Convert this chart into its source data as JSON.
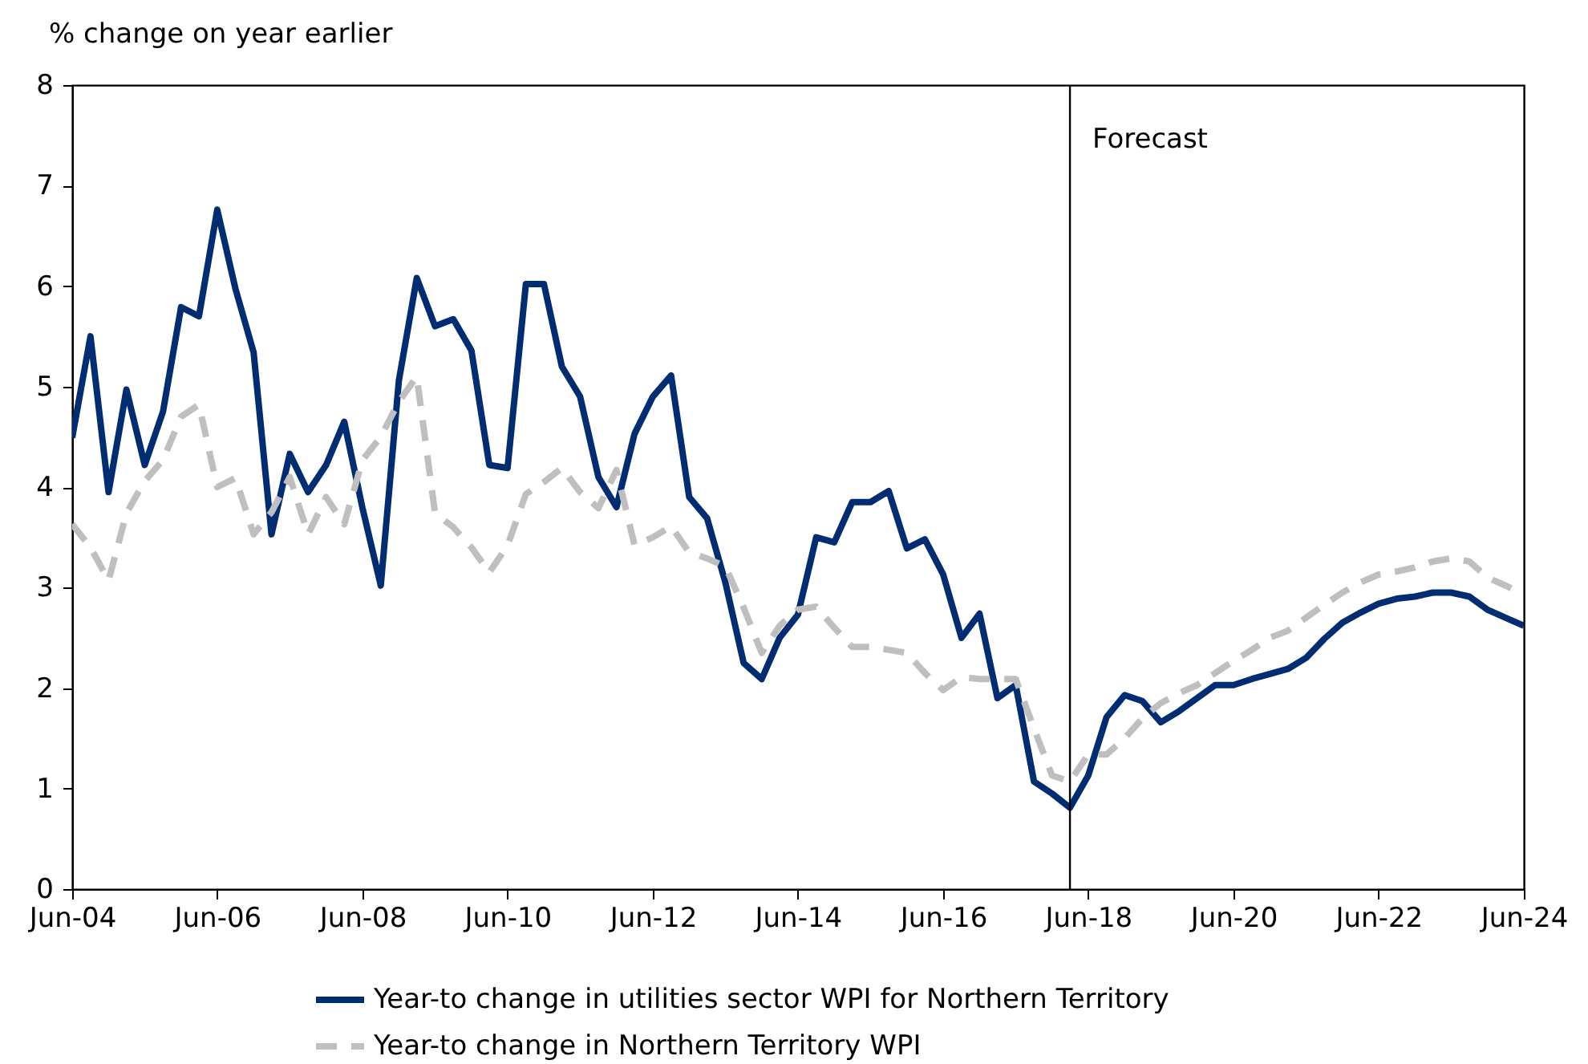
{
  "chart_data": {
    "type": "line",
    "ylabel": "% change on year earlier",
    "legend": "bottom",
    "grid": false,
    "x": [
      "2004-06",
      "2004-09",
      "2004-12",
      "2005-03",
      "2005-06",
      "2005-09",
      "2005-12",
      "2006-03",
      "2006-06",
      "2006-09",
      "2006-12",
      "2007-03",
      "2007-06",
      "2007-09",
      "2007-12",
      "2008-03",
      "2008-06",
      "2008-09",
      "2008-12",
      "2009-03",
      "2009-06",
      "2009-09",
      "2009-12",
      "2010-03",
      "2010-06",
      "2010-09",
      "2010-12",
      "2011-03",
      "2011-06",
      "2011-09",
      "2011-12",
      "2012-03",
      "2012-06",
      "2012-09",
      "2012-12",
      "2013-03",
      "2013-06",
      "2013-09",
      "2013-12",
      "2014-03",
      "2014-06",
      "2014-09",
      "2014-12",
      "2015-03",
      "2015-06",
      "2015-09",
      "2015-12",
      "2016-03",
      "2016-06",
      "2016-09",
      "2016-12",
      "2017-03",
      "2017-06",
      "2017-09",
      "2017-12",
      "2018-03",
      "2018-06",
      "2018-09",
      "2018-12",
      "2019-03",
      "2019-06",
      "2019-09",
      "2019-12",
      "2020-03",
      "2020-06",
      "2020-09",
      "2020-12",
      "2021-03",
      "2021-06",
      "2021-09",
      "2021-12",
      "2022-03",
      "2022-06",
      "2022-09",
      "2022-12",
      "2023-03",
      "2023-06",
      "2023-09",
      "2023-12",
      "2024-03",
      "2024-06"
    ],
    "series": [
      {
        "name": "Year-to change in utilities sector WPI for Northern Territory",
        "color": "#002d72",
        "line_style": "solid",
        "values": [
          4.49,
          5.5,
          3.95,
          4.97,
          4.22,
          4.75,
          5.79,
          5.7,
          6.76,
          5.97,
          5.34,
          3.53,
          4.33,
          3.95,
          4.22,
          4.65,
          3.79,
          3.02,
          5.06,
          6.08,
          5.6,
          5.67,
          5.36,
          4.22,
          4.19,
          6.02,
          6.02,
          5.2,
          4.9,
          4.1,
          3.8,
          4.53,
          4.9,
          5.11,
          3.9,
          3.69,
          3.05,
          2.25,
          2.09,
          2.5,
          2.73,
          3.5,
          3.45,
          3.85,
          3.85,
          3.96,
          3.39,
          3.48,
          3.13,
          2.5,
          2.74,
          1.9,
          2.03,
          1.07,
          0.95,
          0.81,
          1.13,
          1.71,
          1.93,
          1.87,
          1.66,
          1.77,
          1.9,
          2.03,
          2.03,
          2.09,
          2.14,
          2.19,
          2.3,
          2.49,
          2.65,
          2.75,
          2.84,
          2.89,
          2.91,
          2.95,
          2.95,
          2.91,
          2.78,
          2.7,
          2.62
        ]
      },
      {
        "name": "Year-to change in Northern Territory WPI",
        "color": "#bfbfbf",
        "line_style": "dashed",
        "values": [
          3.63,
          3.4,
          3.07,
          3.74,
          4.06,
          4.27,
          4.7,
          4.82,
          4.0,
          4.09,
          3.53,
          3.75,
          4.1,
          3.53,
          3.9,
          3.63,
          4.27,
          4.5,
          4.85,
          5.1,
          3.74,
          3.6,
          3.4,
          3.15,
          3.42,
          3.93,
          4.05,
          4.19,
          3.95,
          3.79,
          4.17,
          3.42,
          3.5,
          3.61,
          3.35,
          3.29,
          3.21,
          2.8,
          2.35,
          2.62,
          2.78,
          2.81,
          2.6,
          2.41,
          2.41,
          2.38,
          2.35,
          2.15,
          1.98,
          2.11,
          2.09,
          2.09,
          2.09,
          1.6,
          1.13,
          1.07,
          1.34,
          1.34,
          1.5,
          1.7,
          1.85,
          1.95,
          2.03,
          2.15,
          2.27,
          2.38,
          2.5,
          2.57,
          2.7,
          2.83,
          2.95,
          3.05,
          3.13,
          3.16,
          3.2,
          3.26,
          3.29,
          3.26,
          3.1,
          3.02,
          2.93
        ]
      }
    ],
    "ref_lines": [
      {
        "axis": "x",
        "value": "2018-03",
        "label": "Forecast",
        "color": "#000000",
        "line_style": "solid"
      }
    ],
    "xlim": [
      "2004-06",
      "2024-06"
    ],
    "xticks": [
      {
        "value": "2004-06",
        "label": "Jun-04"
      },
      {
        "value": "2006-06",
        "label": "Jun-06"
      },
      {
        "value": "2008-06",
        "label": "Jun-08"
      },
      {
        "value": "2010-06",
        "label": "Jun-10"
      },
      {
        "value": "2012-06",
        "label": "Jun-12"
      },
      {
        "value": "2014-06",
        "label": "Jun-14"
      },
      {
        "value": "2016-06",
        "label": "Jun-16"
      },
      {
        "value": "2018-06",
        "label": "Jun-18"
      },
      {
        "value": "2020-06",
        "label": "Jun-20"
      },
      {
        "value": "2022-06",
        "label": "Jun-22"
      },
      {
        "value": "2024-06",
        "label": "Jun-24"
      }
    ],
    "ylim": [
      0,
      8
    ],
    "yticks": [
      0,
      1,
      2,
      3,
      4,
      5,
      6,
      7,
      8
    ]
  }
}
